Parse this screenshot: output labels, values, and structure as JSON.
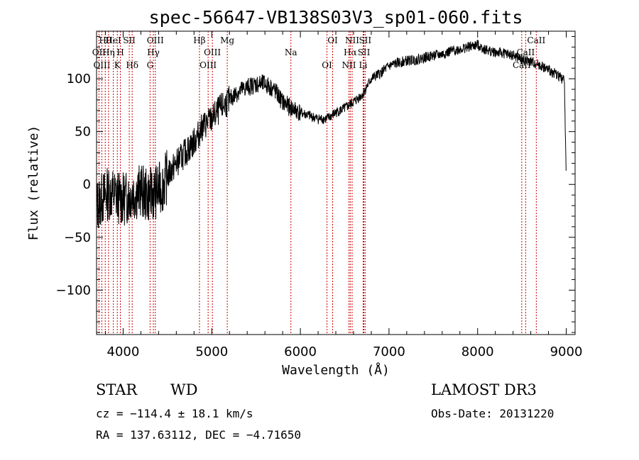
{
  "chart_data": {
    "type": "line",
    "title": "spec-56647-VB138S03V3_sp01-060.fits",
    "xlabel": "Wavelength (Å)",
    "ylabel": "Flux (relative)",
    "xlim": [
      3700,
      9100
    ],
    "ylim": [
      -142,
      145
    ],
    "xticks": [
      4000,
      5000,
      6000,
      7000,
      8000,
      9000
    ],
    "yticks": [
      -100,
      -50,
      0,
      50,
      100
    ],
    "series": [
      {
        "name": "flux",
        "color": "#000000",
        "x": [
          3700,
          3750,
          3800,
          3850,
          3900,
          3950,
          4000,
          4050,
          4100,
          4150,
          4200,
          4250,
          4300,
          4350,
          4400,
          4450,
          4500,
          4600,
          4700,
          4800,
          4900,
          5000,
          5100,
          5200,
          5300,
          5400,
          5500,
          5600,
          5700,
          5800,
          5900,
          6000,
          6100,
          6200,
          6300,
          6400,
          6500,
          6600,
          6700,
          6800,
          6900,
          7000,
          7100,
          7200,
          7300,
          7400,
          7500,
          7600,
          7700,
          7800,
          7900,
          8000,
          8100,
          8200,
          8300,
          8400,
          8500,
          8600,
          8700,
          8800,
          8900,
          8980,
          9000
        ],
        "y": [
          -20,
          -15,
          -10,
          -8,
          -10,
          -12,
          -14,
          -12,
          -8,
          -8,
          -5,
          -10,
          -10,
          -8,
          -5,
          0,
          8,
          20,
          30,
          40,
          55,
          62,
          72,
          80,
          88,
          92,
          95,
          95,
          90,
          78,
          72,
          68,
          65,
          62,
          62,
          68,
          72,
          78,
          85,
          100,
          105,
          112,
          115,
          117,
          118,
          120,
          122,
          123,
          126,
          128,
          130,
          132,
          127,
          125,
          124,
          122,
          118,
          116,
          113,
          108,
          104,
          98,
          5
        ]
      }
    ],
    "annotations": [
      {
        "label": "Hθ",
        "wavelength": 3798
      },
      {
        "label": "OII",
        "wavelength": 3727
      },
      {
        "label": "OIII",
        "wavelength": 3760
      },
      {
        "label": "HeI",
        "wavelength": 3889
      },
      {
        "label": "Hη",
        "wavelength": 3835
      },
      {
        "label": "K",
        "wavelength": 3934
      },
      {
        "label": "SII",
        "wavelength": 4069
      },
      {
        "label": "H",
        "wavelength": 3969
      },
      {
        "label": "Hδ",
        "wavelength": 4102
      },
      {
        "label": "OIII",
        "wavelength": 4363
      },
      {
        "label": "Hγ",
        "wavelength": 4341
      },
      {
        "label": "G",
        "wavelength": 4304
      },
      {
        "label": "Hβ",
        "wavelength": 4861
      },
      {
        "label": "OIII",
        "wavelength": 5007
      },
      {
        "label": "OIII",
        "wavelength": 4959
      },
      {
        "label": "Mg",
        "wavelength": 5175
      },
      {
        "label": "Na",
        "wavelength": 5893
      },
      {
        "label": "OI",
        "wavelength": 6300
      },
      {
        "label": "OI",
        "wavelength": 6364
      },
      {
        "label": "Hα",
        "wavelength": 6563
      },
      {
        "label": "NII",
        "wavelength": 6548
      },
      {
        "label": "NII",
        "wavelength": 6584
      },
      {
        "label": "SII",
        "wavelength": 6717
      },
      {
        "label": "Li",
        "wavelength": 6708
      },
      {
        "label": "SII",
        "wavelength": 6731
      },
      {
        "label": "CaII",
        "wavelength": 8542
      },
      {
        "label": "CaII",
        "wavelength": 8498
      },
      {
        "label": "CaII",
        "wavelength": 8662
      }
    ]
  },
  "info": {
    "class": "STAR",
    "subclass": "WD",
    "survey": "LAMOST DR3",
    "cz": "cz = −114.4 ± 18.1 km/s",
    "obs_date": "Obs-Date: 20131220",
    "radec": "RA = 137.63112, DEC =  −4.71650"
  },
  "colors": {
    "line": "#000000",
    "marker": "#cc0000"
  }
}
